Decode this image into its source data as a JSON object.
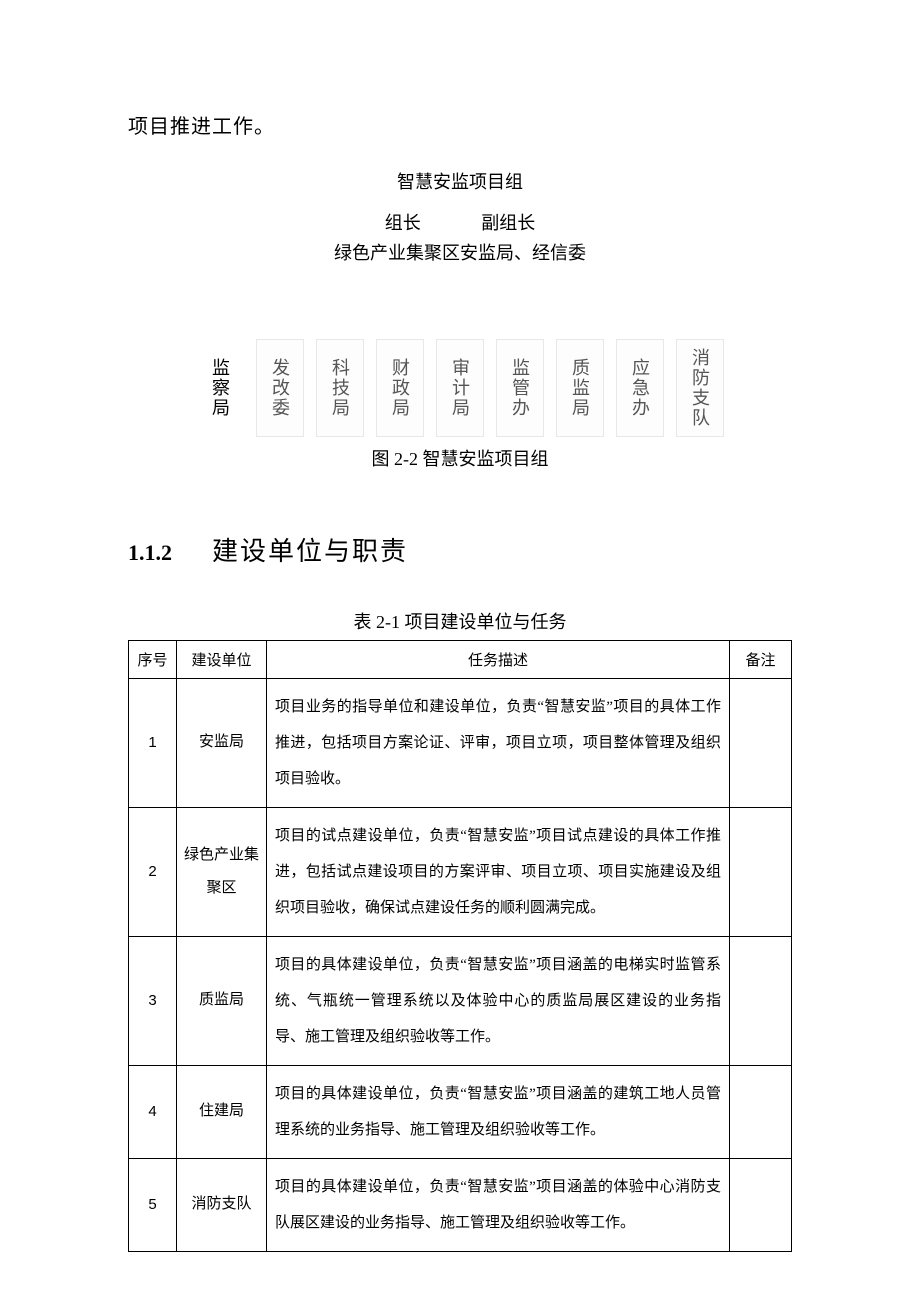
{
  "intro": "项目推进工作。",
  "org": {
    "title": "智慧安监项目组",
    "role_leader": "组长",
    "role_deputy": "副组长",
    "subtitle": "绿色产业集聚区安监局、经信委",
    "boxes": [
      "监察局",
      "发改委",
      "科技局",
      "财政局",
      "审计局",
      "监管办",
      "质监局",
      "应急办",
      "消防支队"
    ]
  },
  "figure_caption": "图 2-2 智慧安监项目组",
  "section": {
    "number": "1.1.2",
    "title": "建设单位与职责"
  },
  "table": {
    "caption": "表 2-1 项目建设单位与任务",
    "headers": {
      "seq": "序号",
      "unit": "建设单位",
      "desc": "任务描述",
      "note": "备注"
    },
    "rows": [
      {
        "seq": "1",
        "unit": "安监局",
        "desc": "项目业务的指导单位和建设单位，负责“智慧安监”项目的具体工作推进，包括项目方案论证、评审，项目立项，项目整体管理及组织项目验收。",
        "note": ""
      },
      {
        "seq": "2",
        "unit": "绿色产业集聚区",
        "desc": "项目的试点建设单位，负责“智慧安监”项目试点建设的具体工作推进，包括试点建设项目的方案评审、项目立项、项目实施建设及组织项目验收，确保试点建设任务的顺利圆满完成。",
        "note": ""
      },
      {
        "seq": "3",
        "unit": "质监局",
        "desc": "项目的具体建设单位，负责“智慧安监”项目涵盖的电梯实时监管系统、气瓶统一管理系统以及体验中心的质监局展区建设的业务指导、施工管理及组织验收等工作。",
        "note": ""
      },
      {
        "seq": "4",
        "unit": "住建局",
        "desc": "项目的具体建设单位，负责“智慧安监”项目涵盖的建筑工地人员管理系统的业务指导、施工管理及组织验收等工作。",
        "note": ""
      },
      {
        "seq": "5",
        "unit": "消防支队",
        "desc": "项目的具体建设单位，负责“智慧安监”项目涵盖的体验中心消防支队展区建设的业务指导、施工管理及组织验收等工作。",
        "note": ""
      }
    ]
  },
  "colors": {
    "text": "#000000",
    "box_border": "#e8e8e8",
    "box_text": "#555555",
    "table_border": "#000000",
    "background": "#ffffff"
  }
}
